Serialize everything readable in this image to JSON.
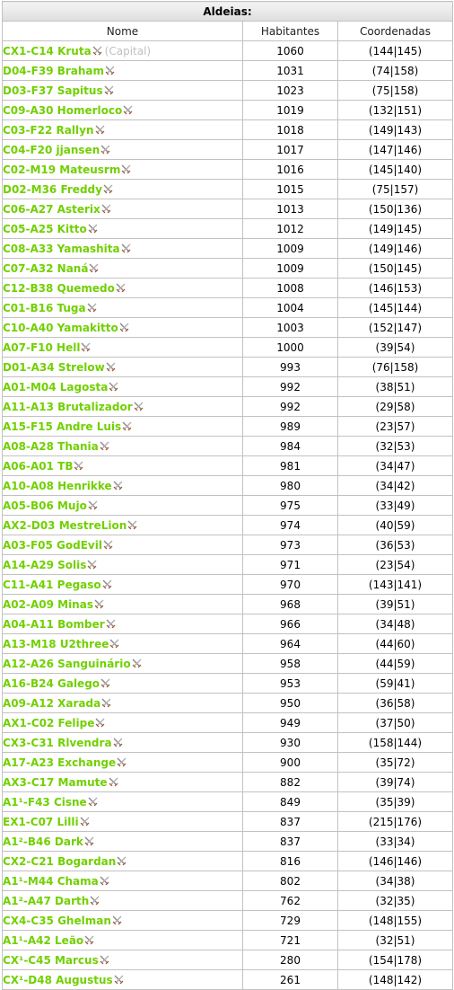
{
  "table": {
    "title": "Aldeias:",
    "headers": {
      "name": "Nome",
      "inhabitants": "Habitantes",
      "coords": "Coordenadas"
    },
    "rows": [
      {
        "name": "CX1-C14 Kruta",
        "note": "(Capital)",
        "inhabitants": "1060",
        "coords": "(144|145)"
      },
      {
        "name": "D04-F39 Braham",
        "note": "",
        "inhabitants": "1031",
        "coords": "(74|158)"
      },
      {
        "name": "D03-F37 Sapitus",
        "note": "",
        "inhabitants": "1023",
        "coords": "(75|158)"
      },
      {
        "name": "C09-A30 Homerloco",
        "note": "",
        "inhabitants": "1019",
        "coords": "(132|151)"
      },
      {
        "name": "C03-F22 Rallyn",
        "note": "",
        "inhabitants": "1018",
        "coords": "(149|143)"
      },
      {
        "name": "C04-F20 jjansen",
        "note": "",
        "inhabitants": "1017",
        "coords": "(147|146)"
      },
      {
        "name": "C02-M19 Mateusrm",
        "note": "",
        "inhabitants": "1016",
        "coords": "(145|140)"
      },
      {
        "name": "D02-M36 Freddy",
        "note": "",
        "inhabitants": "1015",
        "coords": "(75|157)"
      },
      {
        "name": "C06-A27 Asterix",
        "note": "",
        "inhabitants": "1013",
        "coords": "(150|136)"
      },
      {
        "name": "C05-A25 Kitto",
        "note": "",
        "inhabitants": "1012",
        "coords": "(149|145)"
      },
      {
        "name": "C08-A33 Yamashita",
        "note": "",
        "inhabitants": "1009",
        "coords": "(149|146)"
      },
      {
        "name": "C07-A32 Naná",
        "note": "",
        "inhabitants": "1009",
        "coords": "(150|145)"
      },
      {
        "name": "C12-B38 Quemedo",
        "note": "",
        "inhabitants": "1008",
        "coords": "(146|153)"
      },
      {
        "name": "C01-B16 Tuga",
        "note": "",
        "inhabitants": "1004",
        "coords": "(145|144)"
      },
      {
        "name": "C10-A40 Yamakitto",
        "note": "",
        "inhabitants": "1003",
        "coords": "(152|147)"
      },
      {
        "name": "A07-F10 Hell",
        "note": "",
        "inhabitants": "1000",
        "coords": "(39|54)"
      },
      {
        "name": "D01-A34 Strelow",
        "note": "",
        "inhabitants": "993",
        "coords": "(76|158)"
      },
      {
        "name": "A01-M04 Lagosta",
        "note": "",
        "inhabitants": "992",
        "coords": "(38|51)"
      },
      {
        "name": "A11-A13 Brutalizador",
        "note": "",
        "inhabitants": "992",
        "coords": "(29|58)"
      },
      {
        "name": "A15-F15 Andre Luis",
        "note": "",
        "inhabitants": "989",
        "coords": "(23|57)"
      },
      {
        "name": "A08-A28 Thania",
        "note": "",
        "inhabitants": "984",
        "coords": "(32|53)"
      },
      {
        "name": "A06-A01 TB",
        "note": "",
        "inhabitants": "981",
        "coords": "(34|47)"
      },
      {
        "name": "A10-A08 Henrikke",
        "note": "",
        "inhabitants": "980",
        "coords": "(34|42)"
      },
      {
        "name": "A05-B06 Mujo",
        "note": "",
        "inhabitants": "975",
        "coords": "(33|49)"
      },
      {
        "name": "AX2-D03 MestreLion",
        "note": "",
        "inhabitants": "974",
        "coords": "(40|59)"
      },
      {
        "name": "A03-F05 GodEvil",
        "note": "",
        "inhabitants": "973",
        "coords": "(36|53)"
      },
      {
        "name": "A14-A29 Solis",
        "note": "",
        "inhabitants": "971",
        "coords": "(23|54)"
      },
      {
        "name": "C11-A41 Pegaso",
        "note": "",
        "inhabitants": "970",
        "coords": "(143|141)"
      },
      {
        "name": "A02-A09 Minas",
        "note": "",
        "inhabitants": "968",
        "coords": "(39|51)"
      },
      {
        "name": "A04-A11 Bomber",
        "note": "",
        "inhabitants": "966",
        "coords": "(34|48)"
      },
      {
        "name": "A13-M18 U2three",
        "note": "",
        "inhabitants": "964",
        "coords": "(44|60)"
      },
      {
        "name": "A12-A26 Sanguinário",
        "note": "",
        "inhabitants": "958",
        "coords": "(44|59)"
      },
      {
        "name": "A16-B24 Galego",
        "note": "",
        "inhabitants": "953",
        "coords": "(59|41)"
      },
      {
        "name": "A09-A12 Xarada",
        "note": "",
        "inhabitants": "950",
        "coords": "(36|58)"
      },
      {
        "name": "AX1-C02 Felipe",
        "note": "",
        "inhabitants": "949",
        "coords": "(37|50)"
      },
      {
        "name": "CX3-C31 Rlvendra",
        "note": "",
        "inhabitants": "930",
        "coords": "(158|144)"
      },
      {
        "name": "A17-A23 Exchange",
        "note": "",
        "inhabitants": "900",
        "coords": "(35|72)"
      },
      {
        "name": "AX3-C17 Mamute",
        "note": "",
        "inhabitants": "882",
        "coords": "(39|74)"
      },
      {
        "name": "A1¹-F43 Cisne",
        "note": "",
        "inhabitants": "849",
        "coords": "(35|39)"
      },
      {
        "name": "EX1-C07 Lilli",
        "note": "",
        "inhabitants": "837",
        "coords": "(215|176)"
      },
      {
        "name": "A1²-B46 Dark",
        "note": "",
        "inhabitants": "837",
        "coords": "(33|34)"
      },
      {
        "name": "CX2-C21 Bogardan",
        "note": "",
        "inhabitants": "816",
        "coords": "(146|146)"
      },
      {
        "name": "A1¹-M44 Chama",
        "note": "",
        "inhabitants": "802",
        "coords": "(34|38)"
      },
      {
        "name": "A1²-A47 Darth",
        "note": "",
        "inhabitants": "762",
        "coords": "(32|35)"
      },
      {
        "name": "CX4-C35 Ghelman",
        "note": "",
        "inhabitants": "729",
        "coords": "(148|155)"
      },
      {
        "name": "A1¹-A42 Leão",
        "note": "",
        "inhabitants": "721",
        "coords": "(32|51)"
      },
      {
        "name": "CX¹-C45 Marcus",
        "note": "",
        "inhabitants": "280",
        "coords": "(154|178)"
      },
      {
        "name": "CX¹-D48 Augustus",
        "note": "",
        "inhabitants": "261",
        "coords": "(148|142)"
      }
    ],
    "row_icon": "crossed-swords-icon",
    "colors": {
      "village_link": "#71d000",
      "capital_note": "#c0c0c0",
      "border": "#c2c2c2"
    }
  }
}
